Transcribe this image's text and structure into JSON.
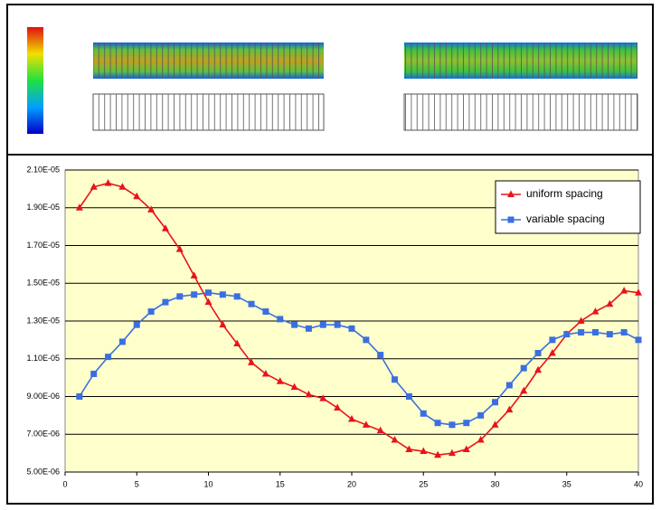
{
  "chart_data": {
    "type": "line",
    "x": [
      1,
      2,
      3,
      4,
      5,
      6,
      7,
      8,
      9,
      10,
      11,
      12,
      13,
      14,
      15,
      16,
      17,
      18,
      19,
      20,
      21,
      22,
      23,
      24,
      25,
      26,
      27,
      28,
      29,
      30,
      31,
      32,
      33,
      34,
      35,
      36,
      37,
      38,
      39,
      40
    ],
    "series": [
      {
        "name": "uniform spacing",
        "color": "#e8141a",
        "marker": "triangle",
        "values": [
          1.9e-05,
          2.01e-05,
          2.03e-05,
          2.01e-05,
          1.96e-05,
          1.89e-05,
          1.79e-05,
          1.68e-05,
          1.54e-05,
          1.4e-05,
          1.28e-05,
          1.18e-05,
          1.08e-05,
          1.02e-05,
          9.8e-06,
          9.5e-06,
          9.1e-06,
          8.9e-06,
          8.4e-06,
          7.8e-06,
          7.5e-06,
          7.2e-06,
          6.7e-06,
          6.2e-06,
          6.1e-06,
          5.9e-06,
          6e-06,
          6.2e-06,
          6.7e-06,
          7.5e-06,
          8.3e-06,
          9.3e-06,
          1.04e-05,
          1.13e-05,
          1.23e-05,
          1.3e-05,
          1.35e-05,
          1.39e-05,
          1.46e-05,
          1.45e-05
        ]
      },
      {
        "name": "variable spacing",
        "color": "#3b6fe0",
        "marker": "square",
        "values": [
          9e-06,
          1.02e-05,
          1.11e-05,
          1.19e-05,
          1.28e-05,
          1.35e-05,
          1.4e-05,
          1.43e-05,
          1.44e-05,
          1.45e-05,
          1.44e-05,
          1.43e-05,
          1.39e-05,
          1.35e-05,
          1.31e-05,
          1.28e-05,
          1.26e-05,
          1.28e-05,
          1.28e-05,
          1.26e-05,
          1.2e-05,
          1.12e-05,
          9.9e-06,
          9e-06,
          8.1e-06,
          7.6e-06,
          7.5e-06,
          7.6e-06,
          8e-06,
          8.7e-06,
          9.6e-06,
          1.05e-05,
          1.13e-05,
          1.2e-05,
          1.23e-05,
          1.24e-05,
          1.24e-05,
          1.23e-05,
          1.24e-05,
          1.2e-05
        ]
      }
    ],
    "xlim": [
      0,
      40
    ],
    "xticks": [
      0,
      5,
      10,
      15,
      20,
      25,
      30,
      35,
      40
    ],
    "ylim": [
      5e-06,
      2.1e-05
    ],
    "yticks": [
      {
        "value": 5e-06,
        "label": "5.00E-06"
      },
      {
        "value": 7e-06,
        "label": "7.00E-06"
      },
      {
        "value": 9e-06,
        "label": "9.00E-06"
      },
      {
        "value": 1.1e-05,
        "label": "1.10E-05"
      },
      {
        "value": 1.3e-05,
        "label": "1.30E-05"
      },
      {
        "value": 1.5e-05,
        "label": "1.50E-05"
      },
      {
        "value": 1.7e-05,
        "label": "1.70E-05"
      },
      {
        "value": 1.9e-05,
        "label": "1.90E-05"
      },
      {
        "value": 2.1e-05,
        "label": "2.10E-05"
      }
    ],
    "grid": true,
    "legend": "upper right",
    "background": "#ffffcc"
  }
}
